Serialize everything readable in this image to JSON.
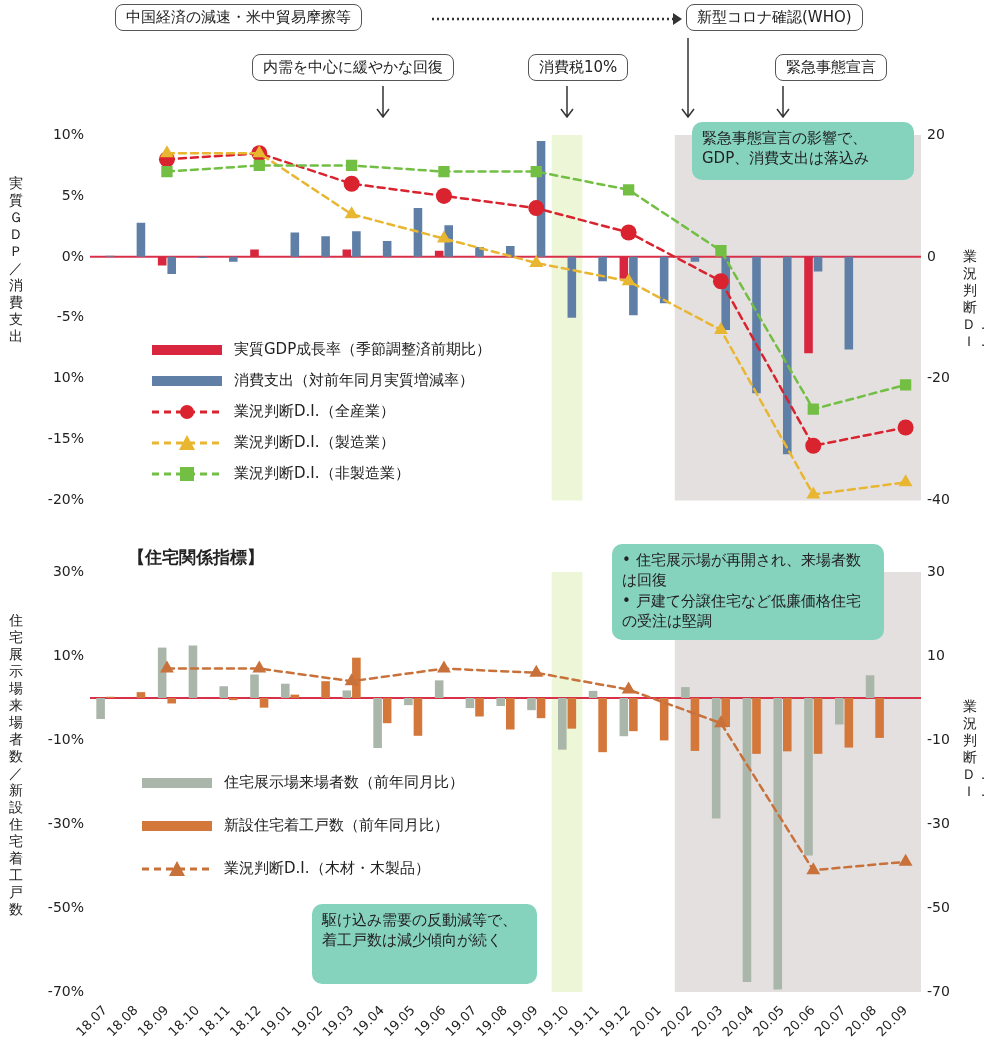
{
  "chart_data": [
    {
      "type": "bar",
      "categories": [
        "18.07",
        "18.08",
        "18.09",
        "18.10",
        "18.11",
        "18.12",
        "19.01",
        "19.02",
        "19.03",
        "19.04",
        "19.05",
        "19.06",
        "19.07",
        "19.08",
        "19.09",
        "19.10",
        "19.11",
        "19.12",
        "20.01",
        "20.02",
        "20.03",
        "20.04",
        "20.05",
        "20.06",
        "20.07",
        "20.08",
        "20.09"
      ],
      "series": [
        {
          "name": "実質GDP成長率（季節調整済前期比）",
          "type": "bar",
          "color": "#d7263d",
          "values": [
            null,
            null,
            -0.7,
            null,
            null,
            0.6,
            null,
            null,
            0.6,
            null,
            null,
            0.5,
            null,
            null,
            null,
            null,
            null,
            -1.8,
            null,
            null,
            null,
            null,
            null,
            -7.9,
            null,
            null,
            null
          ]
        },
        {
          "name": "消費支出（対前年同月実質増減率）",
          "type": "bar",
          "color": "#5f7fa6",
          "values": [
            0.1,
            2.8,
            -1.4,
            -0.1,
            -0.4,
            null,
            2.0,
            1.7,
            2.1,
            1.3,
            4.0,
            2.6,
            0.8,
            0.9,
            9.5,
            -5.0,
            -2.0,
            -4.8,
            -3.8,
            -0.4,
            -6.0,
            -11.2,
            -16.2,
            -1.2,
            -7.6,
            null,
            null
          ]
        },
        {
          "name": "業況判断D.I.（全産業）",
          "type": "line",
          "axis": "y2",
          "marker": "circle",
          "line_style": "dashed",
          "color": "#d9232e",
          "values": [
            null,
            null,
            16,
            null,
            null,
            17,
            null,
            null,
            12,
            null,
            null,
            10,
            null,
            null,
            8,
            null,
            null,
            4,
            null,
            null,
            -4,
            null,
            null,
            -31,
            null,
            null,
            -28
          ]
        },
        {
          "name": "業況判断D.I.（製造業）",
          "type": "line",
          "axis": "y2",
          "marker": "triangle",
          "line_style": "dashed",
          "color": "#e8b630",
          "values": [
            null,
            null,
            17,
            null,
            null,
            17,
            null,
            null,
            7,
            null,
            null,
            3,
            null,
            null,
            -1,
            null,
            null,
            -4,
            null,
            null,
            -12,
            null,
            null,
            -39,
            null,
            null,
            -37
          ]
        },
        {
          "name": "業況判断D.I.（非製造業）",
          "type": "line",
          "axis": "y2",
          "marker": "square",
          "line_style": "dashed",
          "color": "#72bf44",
          "values": [
            null,
            null,
            14,
            null,
            null,
            15,
            null,
            null,
            15,
            null,
            null,
            14,
            null,
            null,
            14,
            null,
            null,
            11,
            null,
            null,
            1,
            null,
            null,
            -25,
            null,
            null,
            -21
          ]
        }
      ],
      "ylim": [
        -20,
        10
      ],
      "yticks": [
        {
          "value": 10,
          "label": "10%"
        },
        {
          "value": 5,
          "label": "5%"
        },
        {
          "value": 0,
          "label": "0%"
        },
        {
          "value": -5,
          "label": "-5%"
        },
        {
          "value": -10,
          "label": "10%"
        },
        {
          "value": -15,
          "label": "-15%"
        },
        {
          "value": -20,
          "label": "-20%"
        }
      ],
      "y2lim": [
        -40,
        20
      ],
      "y2ticks": [
        20,
        0,
        -20,
        -40
      ],
      "ylabel": "実質ＧＤＰ／消費支出",
      "y2label": "業況判断Ｄ．Ｉ．",
      "tick_labels": "y",
      "legend": "bottom left",
      "ref_lines": [
        {
          "axis": "y",
          "value": 0,
          "color": "#d9304a"
        }
      ],
      "bands": [
        {
          "axis": "x",
          "from": "19.10",
          "to": "19.10",
          "color": "#eef6d8"
        },
        {
          "axis": "x",
          "from": "20.02",
          "to": "20.09",
          "color": "#e4e0e0"
        }
      ],
      "annotations": [
        "中国経済の減速・米中貿易摩擦等",
        "新型コロナ確認(WHO)",
        "内需を中心に緩やかな回復",
        "消費税10%",
        "緊急事態宣言",
        "緊急事態宣言の影響で、GDP、消費支出は落込み"
      ]
    },
    {
      "type": "bar",
      "title": "【住宅関係指標】",
      "categories": [
        "18.07",
        "18.08",
        "18.09",
        "18.10",
        "18.11",
        "18.12",
        "19.01",
        "19.02",
        "19.03",
        "19.04",
        "19.05",
        "19.06",
        "19.07",
        "19.08",
        "19.09",
        "19.10",
        "19.11",
        "19.12",
        "20.01",
        "20.02",
        "20.03",
        "20.04",
        "20.05",
        "20.06",
        "20.07",
        "20.08",
        "20.09"
      ],
      "series": [
        {
          "name": "住宅展示場来場者数（前年同月比）",
          "type": "bar",
          "color": "#a9b6a9",
          "values": [
            -5,
            null,
            12,
            12.5,
            2.8,
            5.6,
            3.4,
            null,
            1.8,
            -11.9,
            -1.7,
            4.2,
            -2.4,
            -1.9,
            -2.9,
            -12.3,
            1.7,
            -9.1,
            null,
            2.6,
            -28.7,
            -67.6,
            -69.4,
            -37.5,
            -6.3,
            5.4,
            null
          ]
        },
        {
          "name": "新設住宅着工戸数（前年同月比）",
          "type": "bar",
          "color": "#d4773a",
          "values": [
            0.3,
            1.4,
            -1.3,
            null,
            -0.5,
            -2.3,
            0.8,
            4.0,
            9.6,
            -6.0,
            -9.0,
            null,
            -4.4,
            -7.5,
            -4.8,
            -7.3,
            -12.9,
            -7.9,
            -10.1,
            -12.6,
            -6.9,
            -13.3,
            -12.7,
            -13.3,
            -11.8,
            -9.5,
            null
          ]
        },
        {
          "name": "業況判断D.I.（木材・木製品）",
          "type": "line",
          "axis": "y2",
          "marker": "triangle",
          "line_style": "dashed",
          "color": "#c9713a",
          "values": [
            null,
            null,
            7,
            null,
            null,
            7,
            null,
            null,
            4,
            null,
            null,
            7,
            null,
            null,
            6,
            null,
            null,
            2,
            null,
            null,
            -6,
            null,
            null,
            -41,
            null,
            null,
            -39
          ]
        }
      ],
      "ylim": [
        -70,
        30
      ],
      "yticks": [
        {
          "value": 30,
          "label": "30%"
        },
        {
          "value": 10,
          "label": "10%"
        },
        {
          "value": -10,
          "label": "-10%"
        },
        {
          "value": -30,
          "label": "-30%"
        },
        {
          "value": -50,
          "label": "-50%"
        },
        {
          "value": -70,
          "label": "-70%"
        }
      ],
      "y2lim": [
        -70,
        30
      ],
      "y2ticks": [
        30,
        10,
        -10,
        -30,
        -50,
        -70
      ],
      "ylabel": "住宅展示場来場者数／新設住宅着工戸数",
      "y2label": "業況判断Ｄ．Ｉ．",
      "legend": "left",
      "ref_lines": [
        {
          "axis": "y",
          "value": 0,
          "color": "#d9304a"
        }
      ],
      "bands": [
        {
          "axis": "x",
          "from": "19.10",
          "to": "19.10",
          "color": "#eef6d8"
        },
        {
          "axis": "x",
          "from": "20.02",
          "to": "20.09",
          "color": "#e4e0e0"
        }
      ],
      "annotations": [
        "• 住宅展示場が再開され、来場者数は回復\n• 戸建て分譲住宅など低廉価格住宅の受注は堅調",
        "駆け込み需要の反動減等で、着工戸数は減少傾向が続く"
      ]
    }
  ]
}
